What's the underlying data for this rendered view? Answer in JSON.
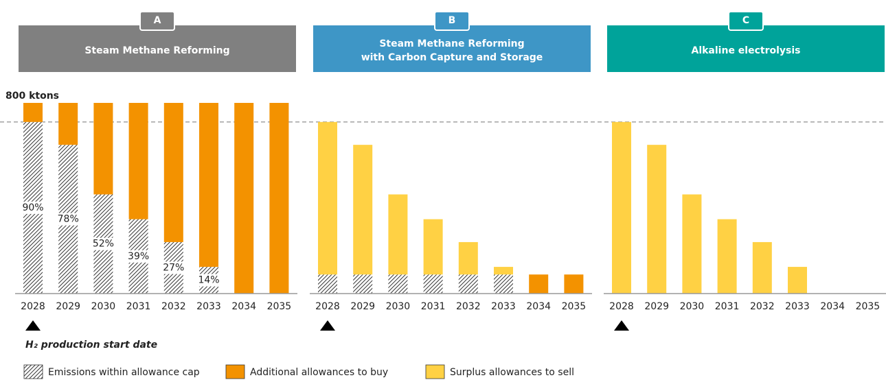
{
  "chart_data": [
    {
      "type": "bar",
      "stacked": true,
      "label": "A",
      "title": "Steam Methane Reforming",
      "header_color": "#808080",
      "categories": [
        "2028",
        "2029",
        "2030",
        "2031",
        "2032",
        "2033",
        "2034",
        "2035"
      ],
      "ylim": [
        0,
        800
      ],
      "yticks": [
        {
          "value": 800,
          "label": "800 ktons"
        }
      ],
      "reference_line": 720,
      "series": [
        {
          "name": "Emissions within allowance cap",
          "color": "hatch",
          "values": [
            720,
            624,
            416,
            312,
            216,
            112,
            0,
            0
          ],
          "value_labels": [
            "90%",
            "78%",
            "52%",
            "39%",
            "27%",
            "14%",
            null,
            null
          ]
        },
        {
          "name": "Additional allowances to buy",
          "color": "#f39200",
          "values": [
            80,
            176,
            384,
            488,
            584,
            688,
            800,
            800
          ]
        }
      ],
      "annotation": "H₂ production start date"
    },
    {
      "type": "bar",
      "stacked": true,
      "label": "B",
      "title": "Steam Methane Reforming\nwith Carbon Capture and Storage",
      "header_color": "#3e96c6",
      "categories": [
        "2028",
        "2029",
        "2030",
        "2031",
        "2032",
        "2033",
        "2034",
        "2035"
      ],
      "ylim": [
        0,
        800
      ],
      "series": [
        {
          "name": "Emissions within allowance cap",
          "color": "hatch",
          "values": [
            80,
            80,
            80,
            80,
            80,
            80,
            0,
            0
          ]
        },
        {
          "name": "Additional allowances to buy",
          "color": "#f39200",
          "values": [
            0,
            0,
            0,
            0,
            0,
            0,
            80,
            80
          ]
        },
        {
          "name": "Surplus allowances to sell",
          "color": "#ffd144",
          "values": [
            640,
            544,
            336,
            232,
            136,
            32,
            0,
            0
          ]
        }
      ]
    },
    {
      "type": "bar",
      "stacked": true,
      "label": "C",
      "title": "Alkaline electrolysis",
      "header_color": "#00a39a",
      "categories": [
        "2028",
        "2029",
        "2030",
        "2031",
        "2032",
        "2033",
        "2034",
        "2035"
      ],
      "ylim": [
        0,
        800
      ],
      "series": [
        {
          "name": "Surplus allowances to sell",
          "color": "#ffd144",
          "values": [
            720,
            624,
            416,
            312,
            216,
            112,
            0,
            0
          ]
        }
      ]
    }
  ]
}
